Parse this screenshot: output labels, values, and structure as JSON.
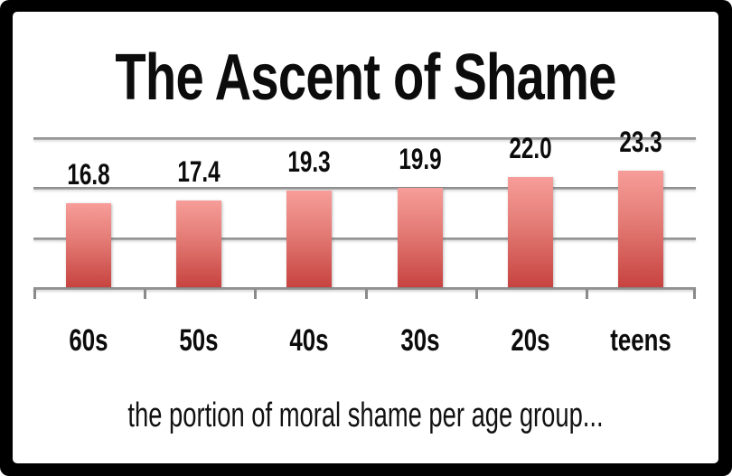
{
  "title": "The Ascent of Shame",
  "caption": "the portion of moral shame per age group...",
  "chart_data": {
    "type": "bar",
    "title": "The Ascent of Shame",
    "subtitle": "the portion of moral shame per age group...",
    "categories": [
      "60s",
      "50s",
      "40s",
      "30s",
      "20s",
      "teens"
    ],
    "values": [
      16.8,
      17.4,
      19.3,
      19.9,
      22.0,
      23.3
    ],
    "value_labels": [
      "16.8",
      "17.4",
      "19.3",
      "19.9",
      "22.0",
      "23.3"
    ],
    "xlabel": "",
    "ylabel": "",
    "ylim": [
      0,
      30
    ],
    "gridline_step": 10,
    "grid": true,
    "y_tick_labels_visible": false,
    "legend_position": "none",
    "colors": {
      "bar_gradient_top": "#f79d99",
      "bar_gradient_bottom": "#c74340",
      "gridline": "#989898",
      "axis": "#8a8a8a",
      "text": "#0c0c0c",
      "frame": "#000000",
      "background": "#ffffff"
    }
  }
}
